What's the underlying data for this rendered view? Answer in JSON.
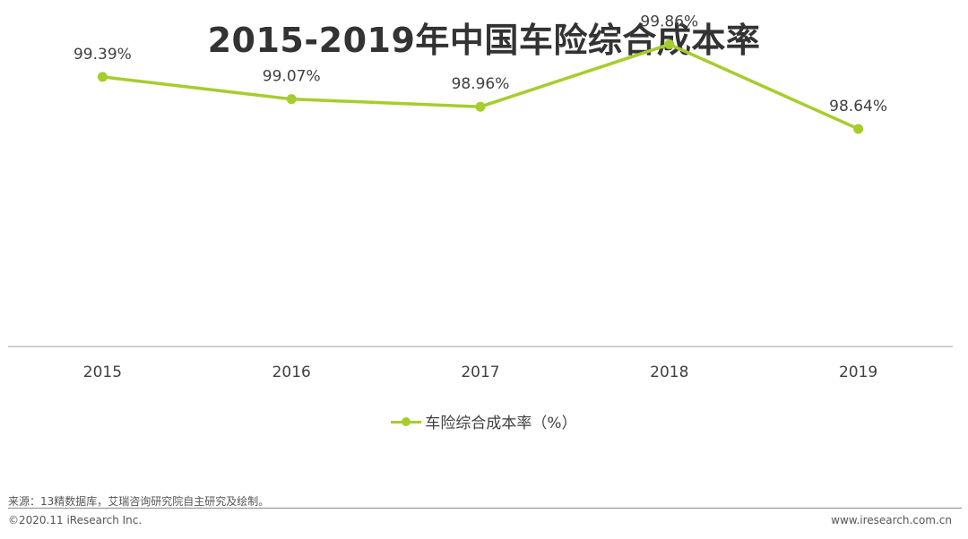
{
  "title": "2015-2019年中国车险综合成本率",
  "chart_data": {
    "type": "line",
    "title": "2015-2019年中国车险综合成本率",
    "categories": [
      "2015",
      "2016",
      "2017",
      "2018",
      "2019"
    ],
    "series": [
      {
        "name": "车险综合成本率（%）",
        "values": [
          99.39,
          99.07,
          98.96,
          99.86,
          98.64
        ],
        "labels": [
          "99.39%",
          "99.07%",
          "98.96%",
          "99.86%",
          "98.64%"
        ],
        "color": "#a6cd2d"
      }
    ],
    "ylim": [
      95.5,
      100.5
    ],
    "grid": false,
    "legend_position": "bottom"
  },
  "footer": {
    "source": "来源：13精数据库，艾瑞咨询研究院自主研究及绘制。",
    "copyright": "©2020.11 iResearch Inc.",
    "website": "www.iresearch.com.cn"
  }
}
